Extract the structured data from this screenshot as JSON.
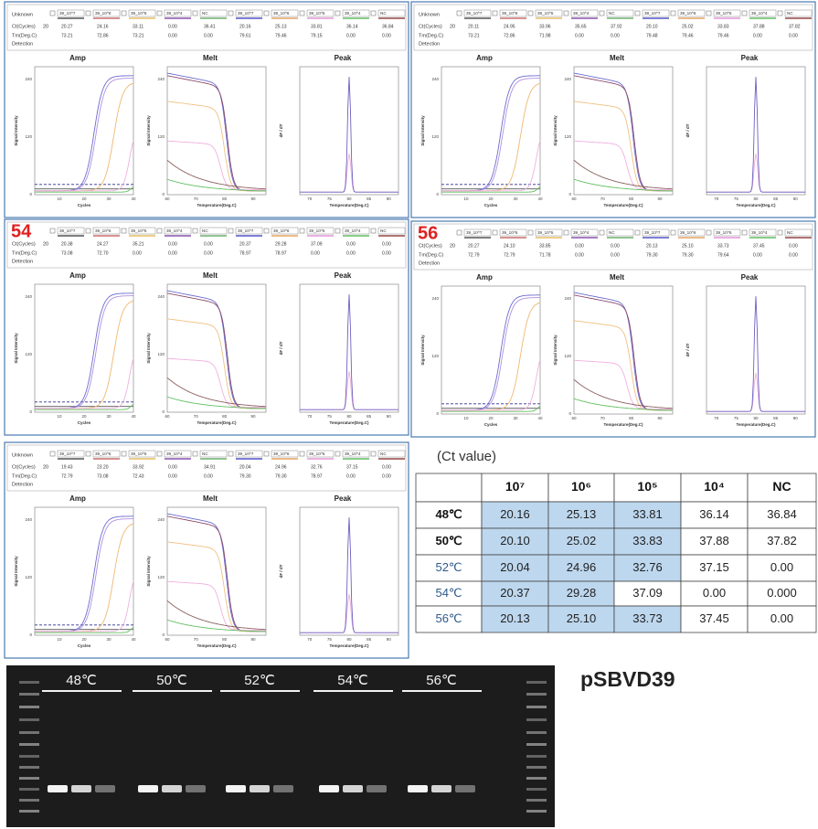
{
  "template": {
    "header": {
      "row_labels": [
        "Unknown",
        "Ct(Cycles)",
        "Tm(Deg.C)",
        "Detection"
      ],
      "threshold": "20",
      "samples": [
        "39_10^7",
        "39_10^6",
        "39_10^5",
        "39_10^4",
        "NC",
        "39_10^7",
        "39_10^6",
        "39_10^5",
        "39_10^4",
        "NC"
      ],
      "colors": [
        "#333333",
        "#c0504d",
        "#e0b040",
        "#7030a0",
        "#50a050",
        "#3030c0",
        "#e09040",
        "#e080d0",
        "#40b040",
        "#802020"
      ]
    },
    "charts": [
      {
        "title": "Amp",
        "x_label": "Cycles",
        "y_label": "Signal Intensity",
        "x_ticks": [
          10,
          20,
          30,
          40
        ],
        "y_ticks": [
          0,
          120,
          240
        ]
      },
      {
        "title": "Melt",
        "x_label": "Temperature(Deg.C)",
        "y_label": "Signal Intensity",
        "x_ticks": [
          60,
          70,
          80,
          90
        ],
        "y_ticks": [
          0,
          120,
          240
        ]
      },
      {
        "title": "Peak",
        "x_label": "Temperature(Deg.C)",
        "y_label": "dF / dT",
        "x_ticks": [
          70,
          75,
          80,
          85,
          90
        ]
      }
    ]
  },
  "panels": [
    {
      "ct": [
        "20.27",
        "24.16",
        "33.11",
        "0.00",
        "36.41",
        "20.16",
        "25.13",
        "33.81",
        "36.14",
        "36.84"
      ],
      "tm": [
        "73.21",
        "72.86",
        "73.21",
        "0.00",
        "0.00",
        "79.61",
        "79.46",
        "79.15",
        "0.00",
        "0.00"
      ]
    },
    {
      "ct": [
        "20.11",
        "24.95",
        "33.96",
        "35.65",
        "37.92",
        "20.10",
        "25.02",
        "33.83",
        "37.88",
        "37.82"
      ],
      "tm": [
        "73.21",
        "72.86",
        "71.98",
        "0.00",
        "0.00",
        "79.48",
        "79.46",
        "79.46",
        "0.00",
        "0.00"
      ]
    },
    {
      "label": "54",
      "ct": [
        "20.38",
        "24.27",
        "35.21",
        "0.00",
        "0.00",
        "20.37",
        "29.28",
        "37.09",
        "0.00",
        "0.00"
      ],
      "tm": [
        "73.08",
        "72.70",
        "0.00",
        "0.00",
        "0.00",
        "78.97",
        "78.97",
        "0.00",
        "0.00",
        "0.00"
      ]
    },
    {
      "label": "56",
      "ct": [
        "20.27",
        "24.10",
        "33.85",
        "0.00",
        "0.00",
        "20.13",
        "25.10",
        "33.73",
        "37.45",
        "0.00"
      ],
      "tm": [
        "72.79",
        "72.79",
        "71.78",
        "0.00",
        "0.00",
        "79.30",
        "79.30",
        "79.64",
        "0.00",
        "0.00"
      ]
    },
    {
      "ct": [
        "19.43",
        "23.20",
        "33.92",
        "0.00",
        "34.91",
        "20.04",
        "24.96",
        "32.76",
        "37.15",
        "0.00"
      ],
      "tm": [
        "72.79",
        "73.08",
        "72.43",
        "0.00",
        "0.00",
        "79.30",
        "79.30",
        "78.97",
        "0.00",
        "0.00"
      ]
    }
  ],
  "ct_table": {
    "title": "(Ct value)",
    "columns": [
      "10⁷",
      "10⁶",
      "10⁵",
      "10⁴",
      "NC"
    ],
    "rows": [
      {
        "label": "48℃",
        "emphasis": true,
        "values": [
          "20.16",
          "25.13",
          "33.81",
          "36.14",
          "36.84"
        ],
        "highlight": [
          true,
          true,
          true,
          false,
          false
        ]
      },
      {
        "label": "50℃",
        "emphasis": true,
        "values": [
          "20.10",
          "25.02",
          "33.83",
          "37.88",
          "37.82"
        ],
        "highlight": [
          true,
          true,
          true,
          false,
          false
        ]
      },
      {
        "label": "52℃",
        "emphasis": false,
        "values": [
          "20.04",
          "24.96",
          "32.76",
          "37.15",
          "0.00"
        ],
        "highlight": [
          true,
          true,
          true,
          false,
          false
        ]
      },
      {
        "label": "54℃",
        "emphasis": false,
        "values": [
          "20.37",
          "29.28",
          "37.09",
          "0.00",
          "0.000"
        ],
        "highlight": [
          true,
          true,
          false,
          false,
          false
        ]
      },
      {
        "label": "56℃",
        "emphasis": false,
        "values": [
          "20.13",
          "25.10",
          "33.73",
          "37.45",
          "0.00"
        ],
        "highlight": [
          true,
          true,
          true,
          false,
          false
        ]
      }
    ]
  },
  "gel": {
    "lanes": [
      "48℃",
      "50℃",
      "52℃",
      "54℃",
      "56℃"
    ],
    "label": "pSBVD39"
  }
}
